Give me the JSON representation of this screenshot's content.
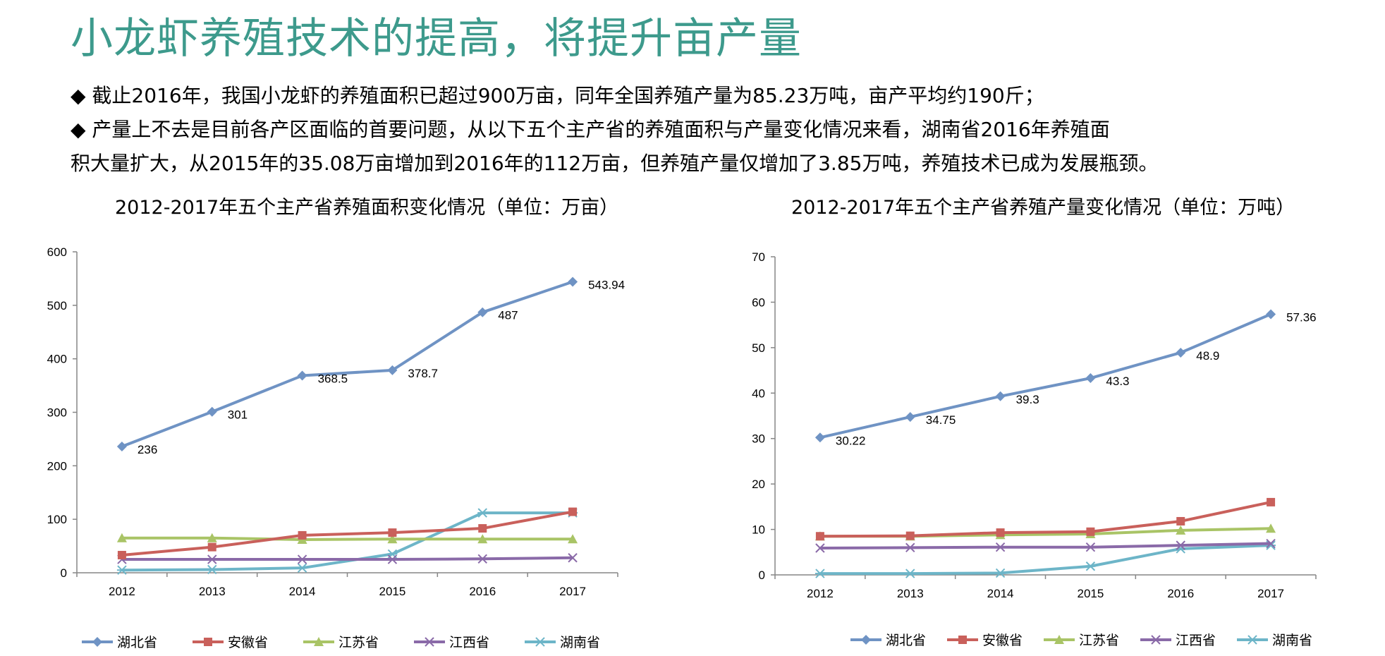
{
  "page": {
    "title": "小龙虾养殖技术的提高，将提升亩产量",
    "bullets": [
      "◆ 截止2016年，我国小龙虾的养殖面积已超过900万亩，同年全国养殖产量为85.23万吨，亩产平均约190斤；",
      "◆ 产量上不去是目前各产区面临的首要问题，从以下五个主产省的养殖面积与产量变化情况来看，湖南省2016年养殖面",
      "积大量扩大，从2015年的35.08万亩增加到2016年的112万亩，但养殖产量仅增加了3.85万吨，养殖技术已成为发展瓶颈。"
    ]
  },
  "chart_data": [
    {
      "type": "line",
      "title": "2012-2017年五个主产省养殖面积变化情况（单位：万亩）",
      "categories": [
        "2012",
        "2013",
        "2014",
        "2015",
        "2016",
        "2017"
      ],
      "ylim": [
        0,
        600
      ],
      "yticks": [
        0,
        100,
        200,
        300,
        400,
        500,
        600
      ],
      "legend_position": "bottom",
      "series": [
        {
          "name": "湖北省",
          "color": "#6f93c4",
          "marker": "diamond",
          "values": [
            236,
            301,
            368.5,
            378.7,
            487,
            543.94
          ],
          "labels": [
            "236",
            "301",
            "368.5",
            "378.7",
            "487",
            "543.94"
          ]
        },
        {
          "name": "安徽省",
          "color": "#c9605b",
          "marker": "square",
          "values": [
            33,
            48,
            70,
            75,
            83,
            114
          ],
          "labels": []
        },
        {
          "name": "江苏省",
          "color": "#a9c466",
          "marker": "triangle",
          "values": [
            65,
            65,
            62,
            63,
            63,
            63
          ],
          "labels": []
        },
        {
          "name": "江西省",
          "color": "#8a6aa8",
          "marker": "x",
          "values": [
            25,
            25,
            25,
            25,
            26,
            28
          ],
          "labels": []
        },
        {
          "name": "湖南省",
          "color": "#6db5c8",
          "marker": "star",
          "values": [
            5,
            6,
            9,
            35.08,
            112,
            112
          ],
          "labels": []
        }
      ]
    },
    {
      "type": "line",
      "title": "2012-2017年五个主产省养殖产量变化情况（单位：万吨）",
      "categories": [
        "2012",
        "2013",
        "2014",
        "2015",
        "2016",
        "2017"
      ],
      "ylim": [
        0,
        70
      ],
      "yticks": [
        0,
        10,
        20,
        30,
        40,
        50,
        60,
        70
      ],
      "legend_position": "bottom",
      "series": [
        {
          "name": "湖北省",
          "color": "#6f93c4",
          "marker": "diamond",
          "values": [
            30.22,
            34.75,
            39.3,
            43.3,
            48.9,
            57.36
          ],
          "labels": [
            "30.22",
            "34.75",
            "39.3",
            "43.3",
            "48.9",
            "57.36"
          ]
        },
        {
          "name": "安徽省",
          "color": "#c9605b",
          "marker": "square",
          "values": [
            8.5,
            8.6,
            9.3,
            9.5,
            11.8,
            16
          ],
          "labels": []
        },
        {
          "name": "江苏省",
          "color": "#a9c466",
          "marker": "triangle",
          "values": [
            8.5,
            8.5,
            8.8,
            9.0,
            9.8,
            10.2
          ],
          "labels": []
        },
        {
          "name": "江西省",
          "color": "#8a6aa8",
          "marker": "x",
          "values": [
            5.9,
            6.0,
            6.1,
            6.1,
            6.5,
            6.9
          ],
          "labels": []
        },
        {
          "name": "湖南省",
          "color": "#6db5c8",
          "marker": "star",
          "values": [
            0.3,
            0.3,
            0.4,
            1.9,
            5.75,
            6.5
          ],
          "labels": []
        }
      ]
    }
  ]
}
